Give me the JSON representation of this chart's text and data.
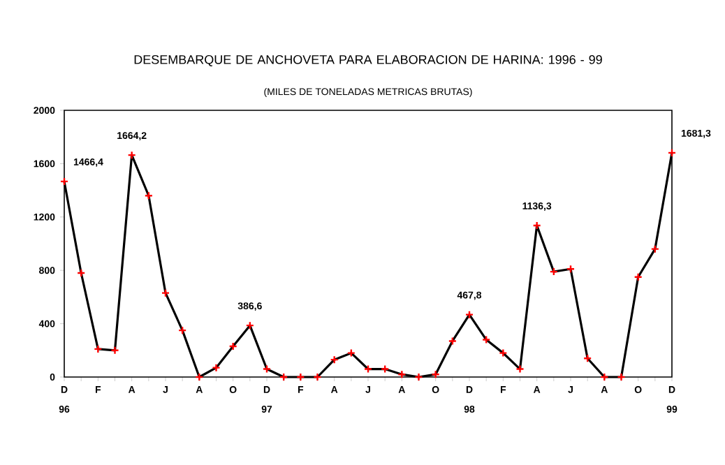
{
  "chart_data": {
    "type": "line",
    "title": "DESEMBARQUE DE ANCHOVETA PARA ELABORACION DE HARINA: 1996 - 99",
    "subtitle": "(MILES DE TONELADAS METRICAS BRUTAS)",
    "categories": [
      "D",
      null,
      "F",
      null,
      "A",
      null,
      "J",
      null,
      "A",
      null,
      "O",
      null,
      "D",
      null,
      "F",
      null,
      "A",
      null,
      "J",
      null,
      "A",
      null,
      "O",
      null,
      "D",
      null,
      "F",
      null,
      "A",
      null,
      "J",
      null,
      "A",
      null,
      "O",
      null,
      "D"
    ],
    "values": [
      1466.4,
      780,
      210,
      200,
      1664.2,
      1360,
      630,
      350,
      0,
      70,
      230,
      386.6,
      60,
      0,
      0,
      0,
      130,
      180,
      60,
      60,
      20,
      0,
      20,
      270,
      467.8,
      280,
      180,
      60,
      1136.3,
      790,
      810,
      140,
      0,
      0,
      750,
      960,
      1681.3
    ],
    "value_labels": [
      "1466,4",
      null,
      null,
      null,
      "1664,2",
      null,
      null,
      null,
      null,
      null,
      null,
      "386,6",
      null,
      null,
      null,
      null,
      null,
      null,
      null,
      null,
      null,
      null,
      null,
      null,
      "467,8",
      null,
      null,
      null,
      "1136,3",
      null,
      null,
      null,
      null,
      null,
      null,
      null,
      "1681,3"
    ],
    "color": "#000000",
    "marker": "cross",
    "line_style": "solid",
    "grid": false,
    "ylim": [
      0,
      2000
    ],
    "yticks": [
      0,
      400,
      800,
      1200,
      1600,
      2000
    ],
    "annotations": [
      "96",
      "97",
      "98",
      "99"
    ]
  }
}
